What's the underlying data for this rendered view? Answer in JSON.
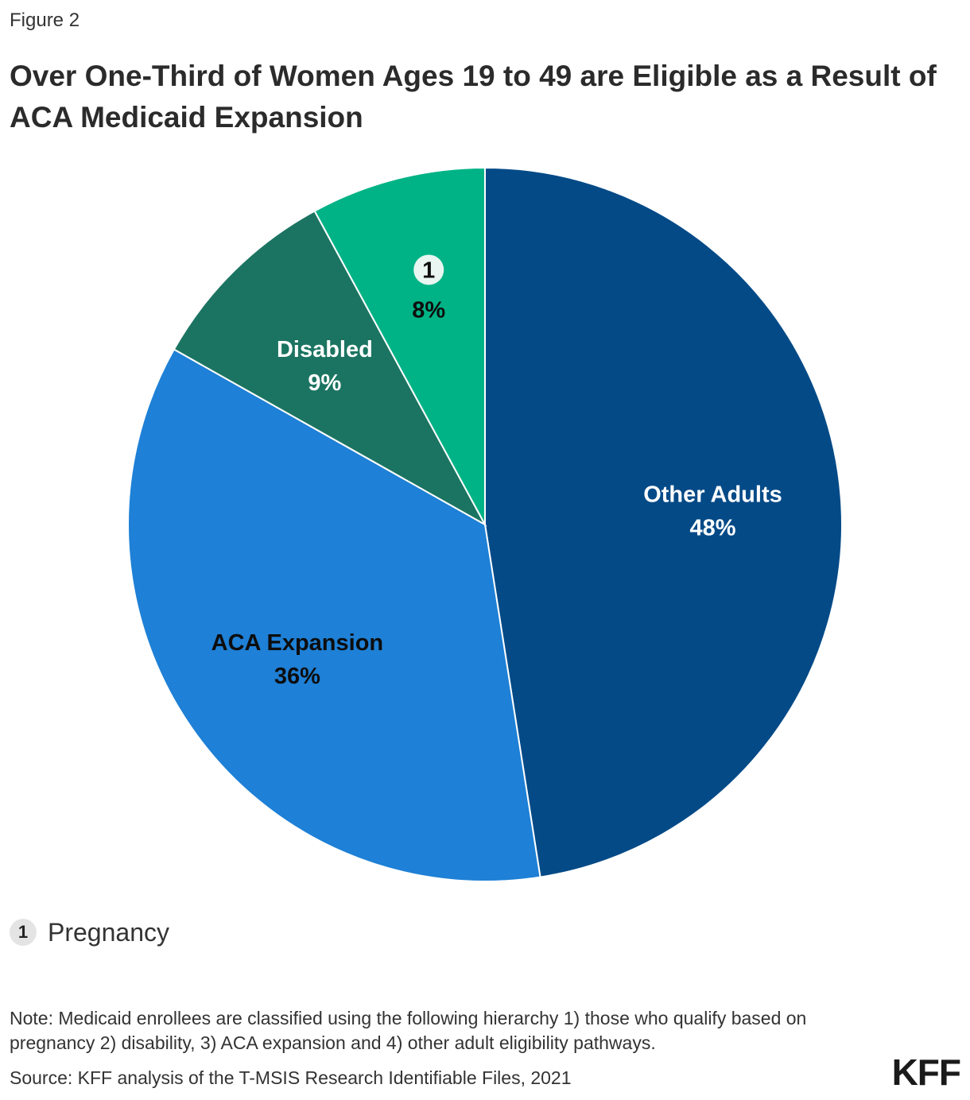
{
  "figure_label": "Figure 2",
  "title": "Over One-Third of Women Ages 19 to 49 are Eligible as a Result of ACA Medicaid Expansion",
  "chart_data": {
    "type": "pie",
    "title": "Over One-Third of Women Ages 19 to 49 are Eligible as a Result of ACA Medicaid Expansion",
    "start": "12 o'clock",
    "direction": "clockwise",
    "slices": [
      {
        "name": "Other Adults",
        "label": "Other Adults",
        "value": 48,
        "value_label": "48%",
        "color": "#034a87",
        "label_color": "#ffffff"
      },
      {
        "name": "ACA Expansion",
        "label": "ACA Expansion",
        "value": 36,
        "value_label": "36%",
        "color": "#1e80d6",
        "label_color": "#0d0d0d"
      },
      {
        "name": "Disabled",
        "label": "Disabled",
        "value": 9,
        "value_label": "9%",
        "color": "#1b7461",
        "label_color": "#ffffff"
      },
      {
        "name": "Pregnancy",
        "label": "1",
        "value": 8,
        "value_label": "8%",
        "color": "#00b386",
        "label_color": "#0d0d0d",
        "marker": "1"
      }
    ]
  },
  "legend": {
    "marker": "1",
    "text": "Pregnancy"
  },
  "note": "Note: Medicaid enrollees are classified using the following hierarchy 1) those who qualify based on pregnancy 2) disability, 3) ACA expansion and 4) other adult eligibility pathways.",
  "source": "Source: KFF analysis of the T-MSIS Research Identifiable Files, 2021",
  "logo": "KFF"
}
